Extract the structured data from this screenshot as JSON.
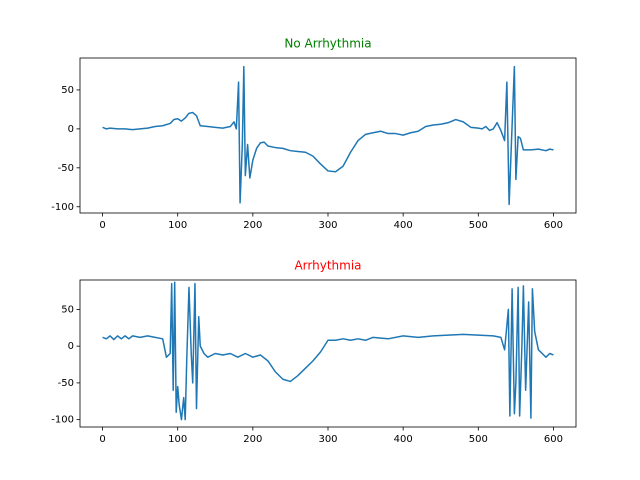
{
  "chart_data": [
    {
      "type": "line",
      "title": "No Arrhythmia",
      "title_color": "#008000",
      "xlim": [
        -30,
        630
      ],
      "ylim": [
        -108,
        91
      ],
      "xticks": [
        0,
        100,
        200,
        300,
        400,
        500,
        600
      ],
      "yticks": [
        -100,
        -50,
        0,
        50
      ],
      "series": [
        {
          "color": "#1f77b4",
          "x": [
            0,
            5,
            10,
            20,
            30,
            40,
            50,
            60,
            70,
            80,
            90,
            95,
            100,
            105,
            110,
            115,
            120,
            125,
            130,
            140,
            150,
            160,
            170,
            175,
            178,
            181,
            183,
            186,
            188,
            190,
            193,
            196,
            200,
            205,
            210,
            215,
            220,
            230,
            240,
            250,
            260,
            270,
            280,
            290,
            300,
            310,
            320,
            330,
            340,
            350,
            360,
            370,
            380,
            390,
            400,
            410,
            420,
            430,
            440,
            450,
            460,
            470,
            480,
            490,
            500,
            505,
            510,
            515,
            520,
            525,
            530,
            535,
            538,
            541,
            544,
            548,
            550,
            553,
            556,
            560,
            570,
            580,
            590,
            595,
            600
          ],
          "values": [
            2,
            0,
            1,
            0,
            0,
            -1,
            0,
            1,
            3,
            4,
            7,
            12,
            13,
            10,
            14,
            20,
            21,
            17,
            4,
            3,
            2,
            1,
            3,
            9,
            0,
            60,
            -95,
            -20,
            80,
            -60,
            -20,
            -63,
            -40,
            -25,
            -18,
            -17,
            -22,
            -24,
            -25,
            -28,
            -29,
            -30,
            -35,
            -45,
            -54,
            -55,
            -48,
            -30,
            -15,
            -7,
            -5,
            -3,
            -6,
            -6,
            -8,
            -5,
            -3,
            3,
            5,
            6,
            8,
            12,
            9,
            2,
            1,
            0,
            3,
            -2,
            0,
            8,
            -2,
            -15,
            60,
            -97,
            -20,
            80,
            -65,
            -10,
            -12,
            -27,
            -27,
            -26,
            -28,
            -26,
            -27
          ]
        }
      ]
    },
    {
      "type": "line",
      "title": "Arrhythmia",
      "title_color": "#ff0000",
      "xlim": [
        -30,
        630
      ],
      "ylim": [
        -110,
        90
      ],
      "xticks": [
        0,
        100,
        200,
        300,
        400,
        500,
        600
      ],
      "yticks": [
        -100,
        -50,
        0,
        50
      ],
      "series": [
        {
          "color": "#1f77b4",
          "x": [
            0,
            5,
            10,
            15,
            20,
            25,
            30,
            35,
            40,
            50,
            60,
            70,
            80,
            85,
            90,
            92,
            94,
            96,
            98,
            100,
            102,
            105,
            108,
            110,
            112,
            115,
            118,
            120,
            123,
            125,
            128,
            130,
            135,
            140,
            150,
            160,
            170,
            180,
            190,
            200,
            210,
            220,
            230,
            240,
            250,
            260,
            270,
            280,
            290,
            300,
            310,
            320,
            330,
            340,
            350,
            360,
            380,
            400,
            420,
            440,
            460,
            480,
            500,
            520,
            530,
            535,
            540,
            542,
            545,
            548,
            550,
            553,
            555,
            558,
            560,
            563,
            567,
            570,
            572,
            575,
            580,
            585,
            590,
            595,
            600
          ],
          "values": [
            12,
            10,
            14,
            9,
            14,
            10,
            14,
            10,
            14,
            12,
            14,
            12,
            10,
            -15,
            -10,
            85,
            -60,
            87,
            -90,
            -55,
            -80,
            -100,
            -70,
            -100,
            -20,
            80,
            -10,
            -50,
            85,
            -85,
            40,
            0,
            -10,
            -15,
            -10,
            -12,
            -10,
            -15,
            -10,
            -15,
            -12,
            -20,
            -35,
            -45,
            -48,
            -40,
            -30,
            -20,
            -8,
            8,
            8,
            10,
            8,
            10,
            8,
            12,
            10,
            14,
            12,
            14,
            15,
            16,
            15,
            14,
            12,
            -5,
            50,
            -95,
            78,
            -92,
            -50,
            80,
            -95,
            0,
            82,
            -60,
            60,
            -98,
            78,
            20,
            -5,
            -10,
            -15,
            -10,
            -12
          ]
        }
      ]
    }
  ]
}
